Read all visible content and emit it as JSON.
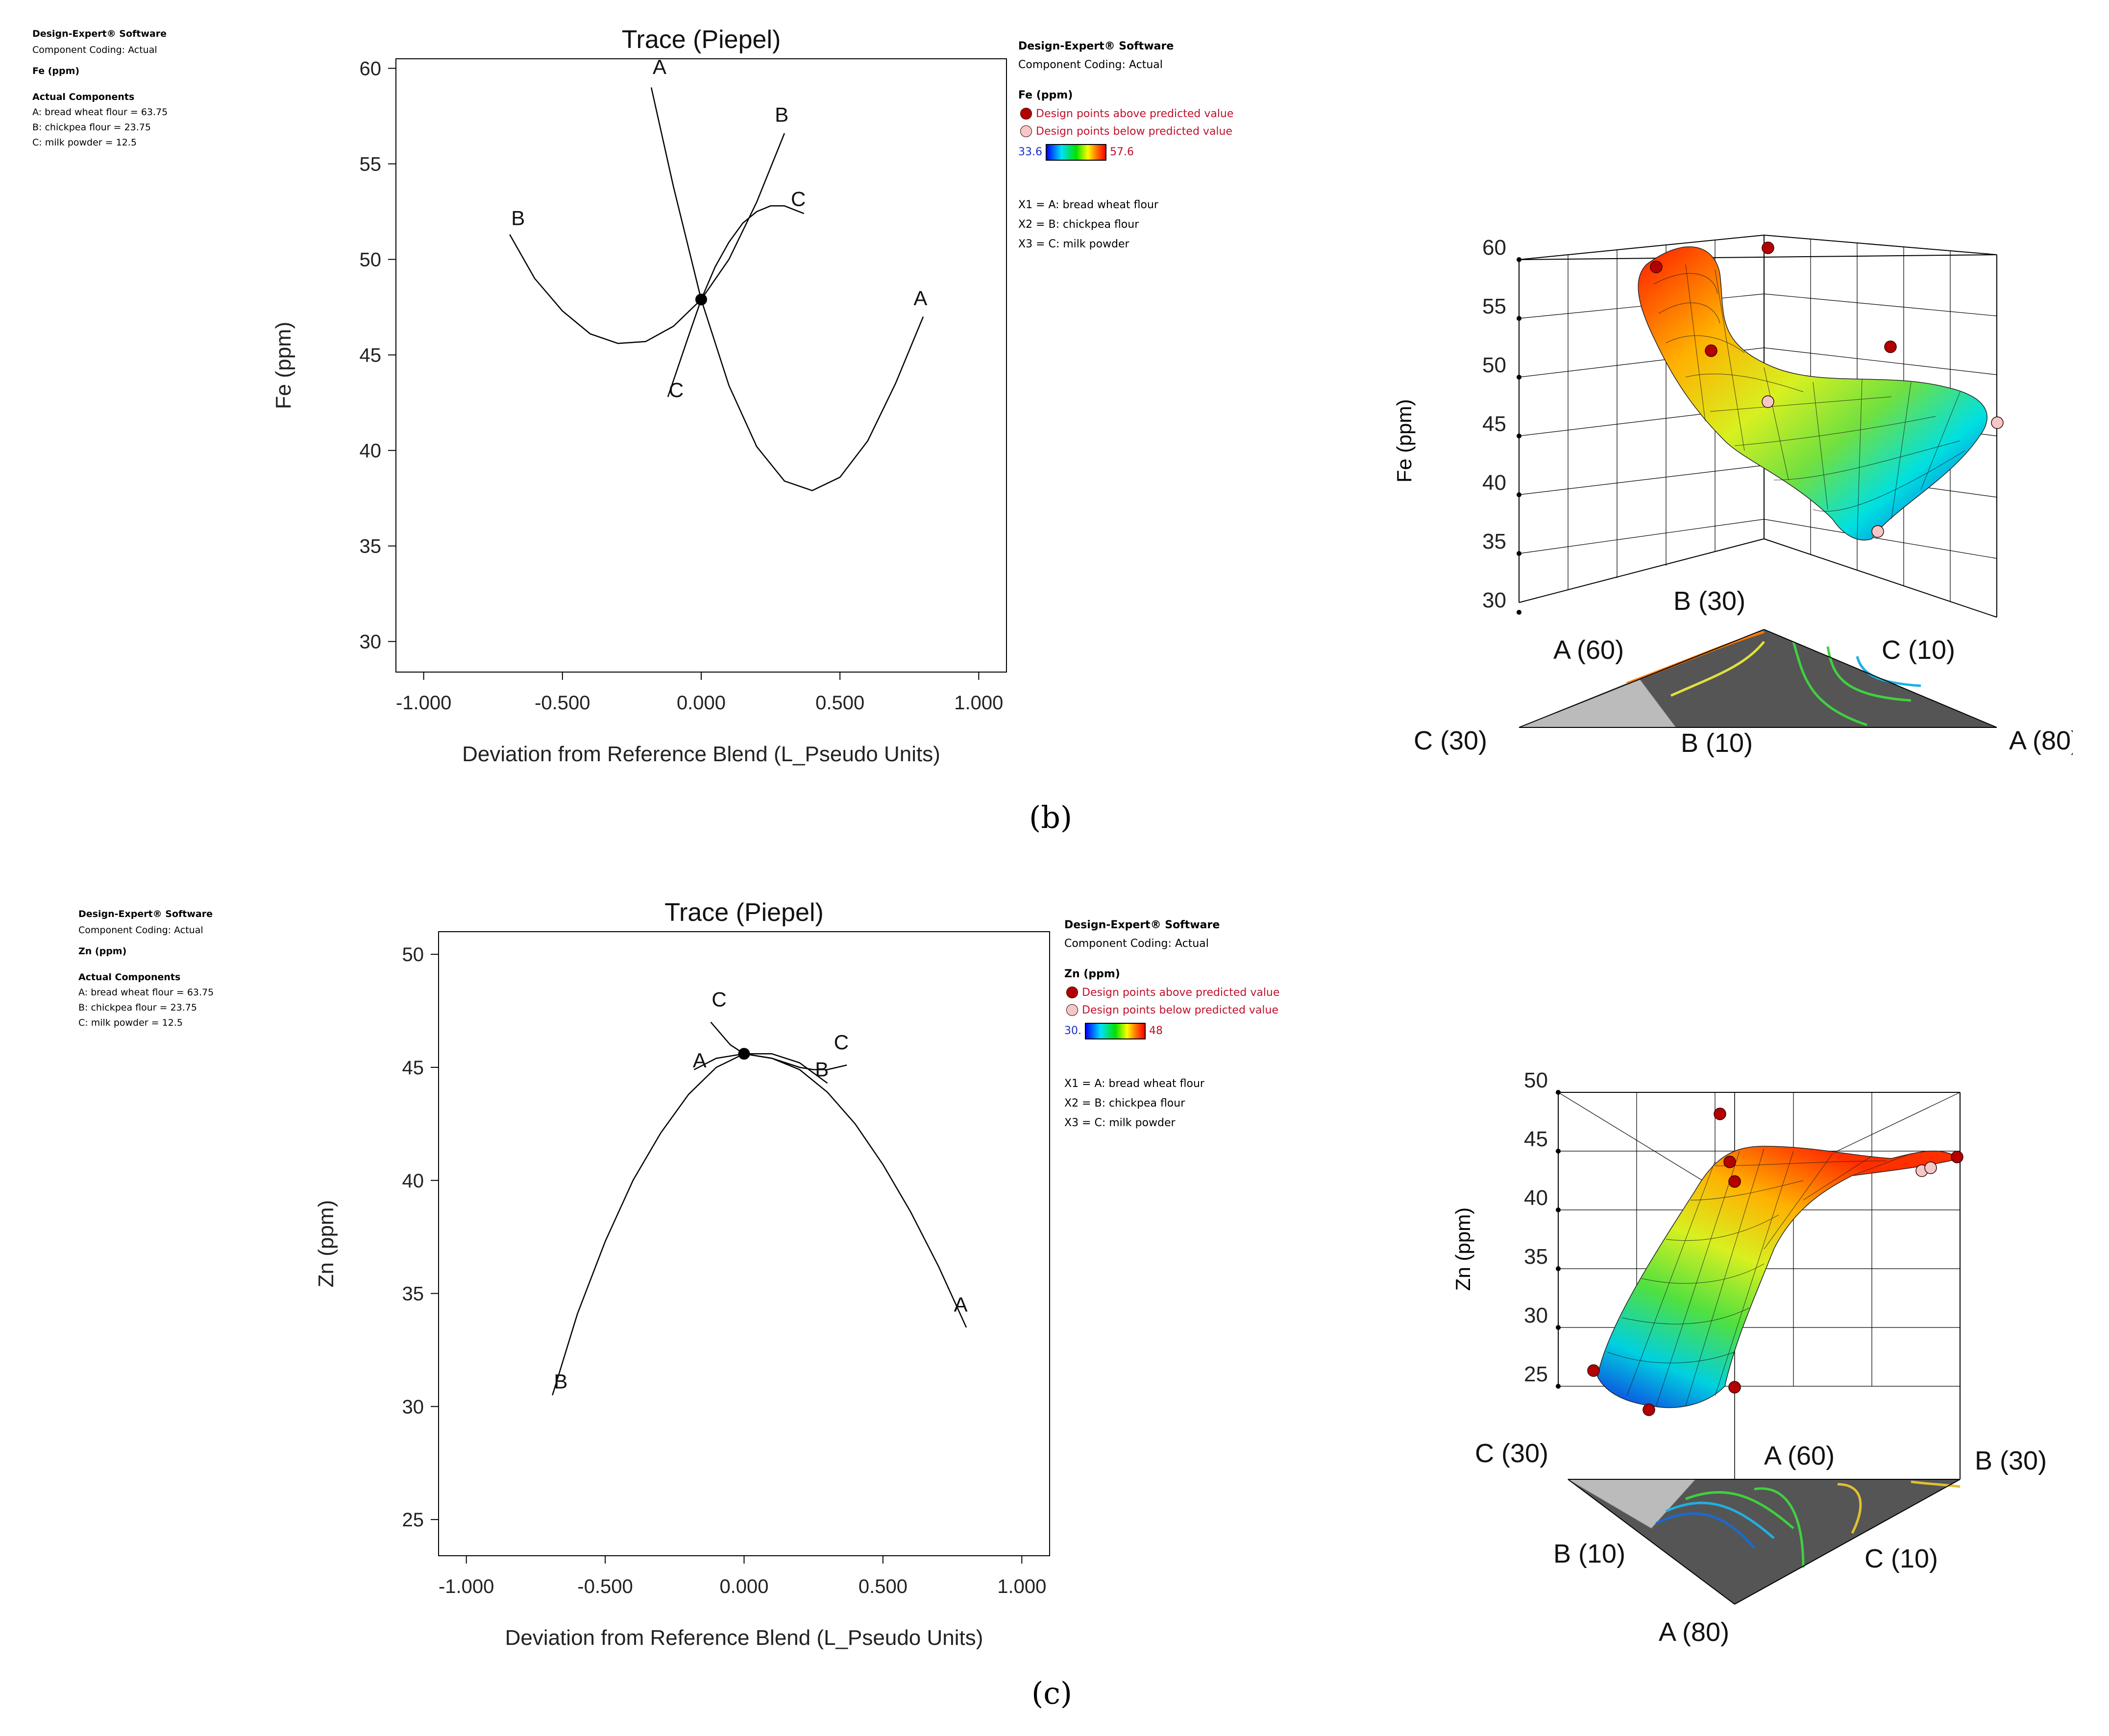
{
  "panel_b": {
    "info": {
      "software": "Design-Expert® Software",
      "coding": "Component Coding: Actual",
      "response": "Fe (ppm)",
      "actual_title": "Actual Components",
      "components": [
        "A: bread wheat flour = 63.75",
        "B: chickpea flour = 23.75",
        "C: milk powder = 12.5"
      ]
    },
    "legend": {
      "software": "Design-Expert® Software",
      "coding": "Component Coding: Actual",
      "response": "Fe (ppm)",
      "above": "Design points above predicted value",
      "below": "Design points below predicted value",
      "grad_min": "33.6",
      "grad_max": "57.6",
      "vars": [
        "X1 = A: bread wheat flour",
        "X2 = B: chickpea flour",
        "X3 = C: milk powder"
      ],
      "above_color": "#b30000",
      "below_color": "#f5c8c8"
    },
    "surface": {
      "ylabel": "Fe (ppm)",
      "zticks": [
        "60",
        "55",
        "50",
        "45",
        "40",
        "35",
        "30"
      ],
      "corner_labels": [
        "B (30)",
        "A (60)",
        "C (10)",
        "C (30)",
        "B (10)",
        "A (80)"
      ]
    },
    "label": "(b)"
  },
  "panel_c": {
    "info": {
      "software": "Design-Expert® Software",
      "coding": "Component Coding: Actual",
      "response": "Zn (ppm)",
      "actual_title": "Actual Components",
      "components": [
        "A: bread wheat flour = 63.75",
        "B: chickpea flour = 23.75",
        "C: milk powder = 12.5"
      ]
    },
    "legend": {
      "software": "Design-Expert® Software",
      "coding": "Component Coding: Actual",
      "response": "Zn (ppm)",
      "above": "Design points above predicted value",
      "below": "Design points below predicted value",
      "grad_min": "30.",
      "grad_max": "48",
      "vars": [
        "X1 = A: bread wheat flour",
        "X2 = B: chickpea flour",
        "X3 = C: milk powder"
      ],
      "above_color": "#b30000",
      "below_color": "#f5c8c8"
    },
    "surface": {
      "ylabel": "Zn (ppm)",
      "zticks": [
        "50",
        "45",
        "40",
        "35",
        "30",
        "25"
      ],
      "corner_labels": [
        "C (30)",
        "A (60)",
        "B (30)",
        "B (10)",
        "C (10)",
        "A (80)"
      ]
    },
    "label": "(c)"
  },
  "chart_data": [
    {
      "type": "line",
      "title": "Trace (Piepel)",
      "xlabel": "Deviation from Reference Blend (L_Pseudo Units)",
      "ylabel": "Fe (ppm)",
      "xlim": [
        -1.1,
        1.1
      ],
      "ylim": [
        28.4,
        60.5
      ],
      "xticks": [
        -1.0,
        -0.5,
        0.0,
        0.5,
        1.0
      ],
      "xtick_labels": [
        "-1.000",
        "-0.500",
        "0.000",
        "0.500",
        "1.000"
      ],
      "yticks": [
        30,
        35,
        40,
        45,
        50,
        55,
        60
      ],
      "ytick_labels": [
        "30",
        "35",
        "40",
        "45",
        "50",
        "55",
        "60"
      ],
      "reference_point": {
        "x": 0.0,
        "y": 47.9
      },
      "series": [
        {
          "name": "A",
          "x": [
            -0.18,
            -0.1,
            0.0,
            0.1,
            0.2,
            0.3,
            0.4,
            0.5,
            0.6,
            0.7,
            0.8
          ],
          "y": [
            59.0,
            53.8,
            47.9,
            43.4,
            40.2,
            38.4,
            37.9,
            38.6,
            40.5,
            43.5,
            47.0
          ]
        },
        {
          "name": "B",
          "x": [
            -0.69,
            -0.6,
            -0.5,
            -0.4,
            -0.3,
            -0.2,
            -0.1,
            0.0,
            0.1,
            0.2,
            0.3
          ],
          "y": [
            51.3,
            49.0,
            47.3,
            46.1,
            45.6,
            45.7,
            46.5,
            47.9,
            50.0,
            53.0,
            56.6
          ]
        },
        {
          "name": "C",
          "x": [
            -0.12,
            -0.05,
            0.0,
            0.05,
            0.1,
            0.15,
            0.2,
            0.25,
            0.3,
            0.37
          ],
          "y": [
            42.8,
            45.8,
            47.9,
            49.6,
            50.9,
            51.9,
            52.5,
            52.8,
            52.8,
            52.4
          ]
        }
      ],
      "curve_labels": [
        {
          "text": "A",
          "x": -0.15,
          "y": 59.7
        },
        {
          "text": "B",
          "x": 0.29,
          "y": 57.2
        },
        {
          "text": "C",
          "x": 0.35,
          "y": 52.8
        },
        {
          "text": "B",
          "x": -0.66,
          "y": 51.8
        },
        {
          "text": "A",
          "x": 0.79,
          "y": 47.6
        },
        {
          "text": "C",
          "x": -0.09,
          "y": 42.8
        }
      ]
    },
    {
      "type": "line",
      "title": "Trace (Piepel)",
      "xlabel": "Deviation from Reference Blend (L_Pseudo Units)",
      "ylabel": "Zn (ppm)",
      "xlim": [
        -1.1,
        1.1
      ],
      "ylim": [
        23.4,
        51.0
      ],
      "xticks": [
        -1.0,
        -0.5,
        0.0,
        0.5,
        1.0
      ],
      "xtick_labels": [
        "-1.000",
        "-0.500",
        "0.000",
        "0.500",
        "1.000"
      ],
      "yticks": [
        25,
        30,
        35,
        40,
        45,
        50
      ],
      "ytick_labels": [
        "25",
        "30",
        "35",
        "40",
        "45",
        "50"
      ],
      "reference_point": {
        "x": 0.0,
        "y": 45.6
      },
      "series": [
        {
          "name": "A",
          "x": [
            -0.18,
            -0.1,
            0.0,
            0.1,
            0.2,
            0.3,
            0.4,
            0.5,
            0.6,
            0.7,
            0.8
          ],
          "y": [
            44.9,
            45.4,
            45.6,
            45.4,
            44.9,
            43.9,
            42.5,
            40.7,
            38.6,
            36.2,
            33.5
          ]
        },
        {
          "name": "B",
          "x": [
            -0.69,
            -0.6,
            -0.5,
            -0.4,
            -0.3,
            -0.2,
            -0.1,
            0.0,
            0.1,
            0.2,
            0.3
          ],
          "y": [
            30.5,
            34.1,
            37.3,
            40.0,
            42.1,
            43.8,
            45.0,
            45.6,
            45.6,
            45.2,
            44.3
          ]
        },
        {
          "name": "C",
          "x": [
            -0.12,
            -0.05,
            0.0,
            0.05,
            0.1,
            0.15,
            0.2,
            0.25,
            0.3,
            0.37
          ],
          "y": [
            47.0,
            46.0,
            45.6,
            45.5,
            45.4,
            45.2,
            45.0,
            44.9,
            44.9,
            45.1
          ]
        }
      ],
      "curve_labels": [
        {
          "text": "C",
          "x": -0.09,
          "y": 47.7
        },
        {
          "text": "C",
          "x": 0.35,
          "y": 45.8
        },
        {
          "text": "A",
          "x": -0.16,
          "y": 45.0
        },
        {
          "text": "B",
          "x": 0.28,
          "y": 44.6
        },
        {
          "text": "A",
          "x": 0.78,
          "y": 34.2
        },
        {
          "text": "B",
          "x": -0.66,
          "y": 30.8
        }
      ]
    }
  ]
}
